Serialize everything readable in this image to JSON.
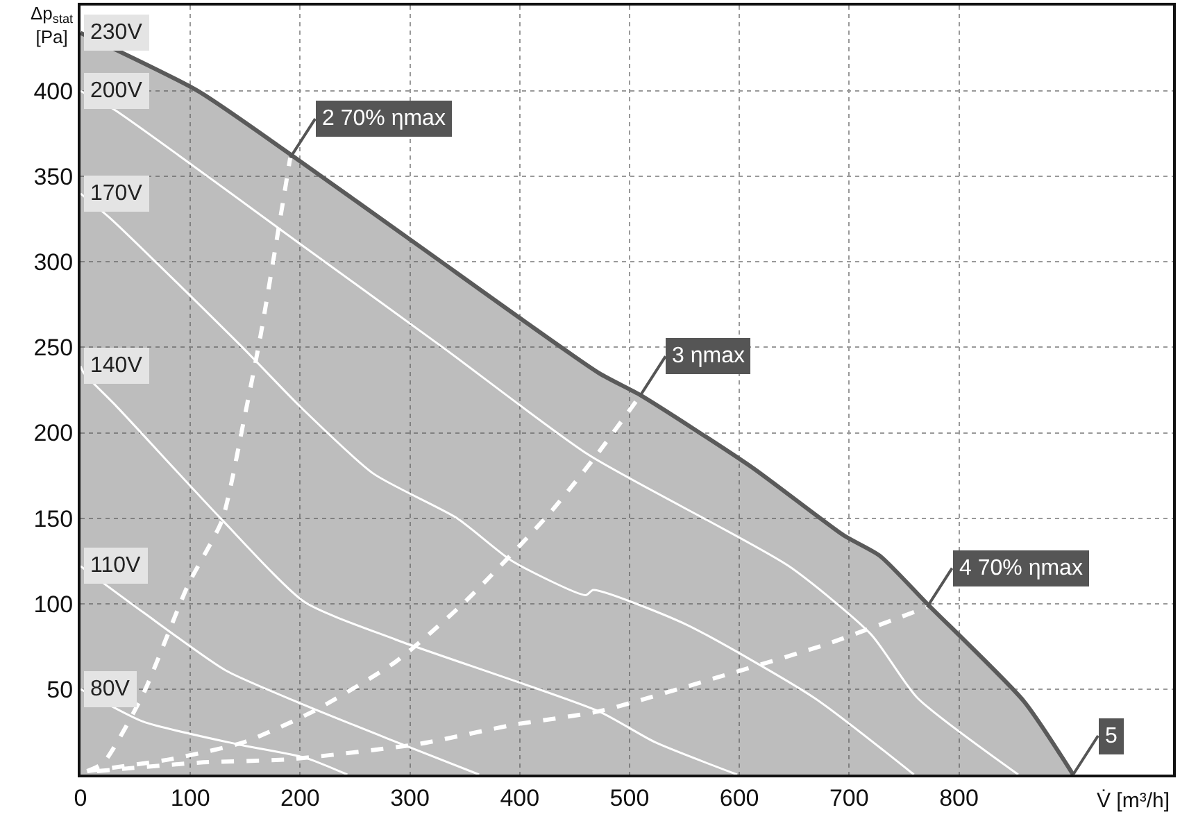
{
  "chart_data": {
    "type": "line",
    "xlabel": "V̇ [m³/h]",
    "ylabel": "Δp$_{stat}$ [Pa]",
    "xlim": [
      0,
      995
    ],
    "ylim": [
      0,
      450
    ],
    "xticks": [
      0,
      100,
      200,
      300,
      400,
      500,
      600,
      700,
      800
    ],
    "yticks": [
      50,
      100,
      150,
      200,
      250,
      300,
      350,
      400
    ],
    "grid": true,
    "legend": false,
    "marker": "none",
    "series": [
      {
        "name": "230V",
        "type": "area",
        "color": "#5a5a5a",
        "line_style": "solid",
        "x": [
          0,
          107,
          191,
          309,
          472,
          510,
          611,
          695,
          728,
          771,
          859,
          904
        ],
        "values": [
          434,
          400,
          363,
          309,
          235,
          222,
          180,
          140,
          128,
          100,
          43,
          0
        ]
      },
      {
        "name": "200V",
        "color": "#ffffff",
        "line_style": "solid",
        "x": [
          0,
          31,
          199,
          332,
          463,
          645,
          720,
          762,
          854
        ],
        "values": [
          400,
          389,
          311,
          249,
          187,
          122,
          82,
          45,
          0
        ]
      },
      {
        "name": "170V",
        "color": "#ffffff",
        "line_style": "solid",
        "x": [
          0,
          28,
          149,
          199,
          267,
          343,
          393,
          460,
          467,
          551,
          668,
          759
        ],
        "values": [
          340,
          325,
          249,
          216,
          176,
          150,
          125,
          105,
          108,
          88,
          45,
          0
        ]
      },
      {
        "name": "140V",
        "color": "#ffffff",
        "line_style": "solid",
        "x": [
          0,
          3,
          32,
          129,
          204,
          287,
          472,
          523,
          598
        ],
        "values": [
          239,
          235,
          216,
          149,
          101,
          79,
          37,
          19,
          0
        ]
      },
      {
        "name": "110V",
        "color": "#ffffff",
        "line_style": "solid",
        "x": [
          0,
          57,
          132,
          199,
          280,
          363
        ],
        "values": [
          122,
          95,
          61,
          42,
          21,
          0
        ]
      },
      {
        "name": "80V",
        "color": "#ffffff",
        "line_style": "solid",
        "x": [
          0,
          57,
          141,
          204,
          243
        ],
        "values": [
          50,
          31,
          18,
          10,
          0
        ]
      },
      {
        "color": "#ffffff",
        "line_style": "dashed",
        "x": [
          6,
          21,
          57,
          98,
          129,
          149,
          164,
          191
        ],
        "values": [
          2,
          7,
          47,
          111,
          149,
          208,
          257,
          361
        ]
      },
      {
        "color": "#ffffff",
        "line_style": "dashed",
        "x": [
          6,
          82,
          149,
          212,
          287,
          350,
          426,
          470,
          510
        ],
        "values": [
          2,
          9,
          19,
          37,
          66,
          101,
          152,
          187,
          222
        ]
      },
      {
        "color": "#ffffff",
        "line_style": "dashed",
        "x": [
          15,
          108,
          191,
          309,
          393,
          472,
          586,
          678,
          771
        ],
        "values": [
          2,
          7,
          9,
          18,
          29,
          37,
          58,
          76,
          98
        ]
      }
    ],
    "annotations": [
      {
        "text": "2 70% ηmax",
        "x": 191,
        "y": 361
      },
      {
        "text": "3 ηmax",
        "x": 510,
        "y": 222
      },
      {
        "text": "4 70% ηmax",
        "x": 771,
        "y": 98
      },
      {
        "text": "5",
        "x": 904,
        "y": 0
      }
    ]
  }
}
